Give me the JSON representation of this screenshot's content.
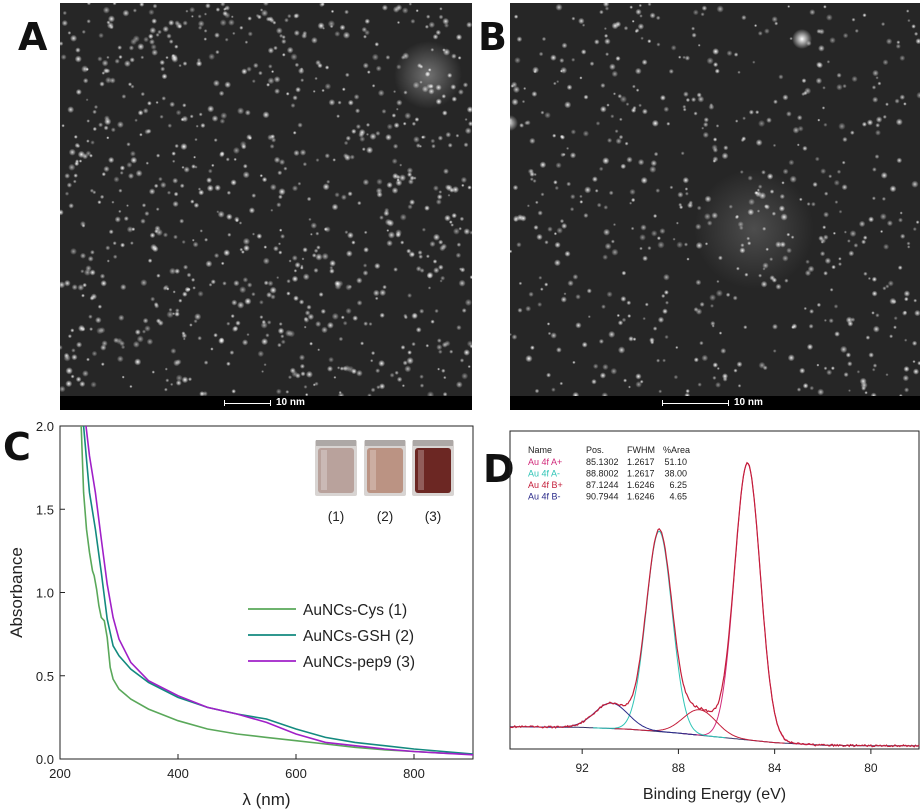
{
  "panels": {
    "a": {
      "letter": "A",
      "scale_label": "10 nm"
    },
    "b": {
      "letter": "B",
      "scale_label": "10 nm"
    },
    "c": {
      "letter": "C"
    },
    "d": {
      "letter": "D"
    }
  },
  "colors": {
    "cys": "#5aa85a",
    "gsh": "#138a7f",
    "pep9": "#a020c8",
    "xps_envelope": "#c41e3a",
    "xps_a_plus": "#d12a7a",
    "xps_a_minus": "#2ec4b6",
    "xps_b_plus": "#c41e3a",
    "xps_b_minus": "#2a2a8a",
    "xps_background": "#333366"
  },
  "chart_data": [
    {
      "type": "line",
      "panel": "C",
      "xlabel": "λ (nm)",
      "ylabel": "Absorbance",
      "xlim": [
        200,
        900
      ],
      "ylim": [
        0,
        2.0
      ],
      "xticks": [
        200,
        400,
        600,
        800
      ],
      "yticks": [
        0.0,
        0.5,
        1.0,
        1.5,
        2.0
      ],
      "xtick_labels": [
        "200",
        "400",
        "600",
        "800"
      ],
      "ytick_labels": [
        "0.0",
        "0.5",
        "1.0",
        "1.5",
        "2.0"
      ],
      "legend_position": "center-right",
      "series": [
        {
          "name": "AuNCs-Cys (1)",
          "color": "#5aa85a",
          "x": [
            236,
            240,
            245,
            250,
            255,
            258,
            262,
            266,
            270,
            275,
            280,
            285,
            290,
            300,
            320,
            350,
            400,
            450,
            500,
            550,
            600,
            650,
            700,
            750,
            800,
            850,
            900
          ],
          "y": [
            2.0,
            1.6,
            1.38,
            1.24,
            1.13,
            1.1,
            1.02,
            0.92,
            0.85,
            0.83,
            0.73,
            0.55,
            0.48,
            0.42,
            0.36,
            0.3,
            0.23,
            0.18,
            0.15,
            0.13,
            0.11,
            0.09,
            0.07,
            0.055,
            0.045,
            0.035,
            0.028
          ]
        },
        {
          "name": "AuNCs-GSH (2)",
          "color": "#138a7f",
          "x": [
            240,
            245,
            250,
            260,
            270,
            280,
            290,
            300,
            320,
            350,
            400,
            450,
            500,
            550,
            600,
            650,
            700,
            750,
            800,
            850,
            900
          ],
          "y": [
            2.0,
            1.8,
            1.6,
            1.38,
            1.12,
            0.84,
            0.68,
            0.62,
            0.54,
            0.46,
            0.37,
            0.31,
            0.27,
            0.24,
            0.18,
            0.13,
            0.1,
            0.08,
            0.06,
            0.045,
            0.03
          ]
        },
        {
          "name": "AuNCs-pep9 (3)",
          "color": "#a020c8",
          "x": [
            244,
            250,
            260,
            270,
            280,
            290,
            300,
            320,
            350,
            400,
            450,
            500,
            550,
            600,
            650,
            700,
            750,
            800,
            850,
            900
          ],
          "y": [
            2.0,
            1.82,
            1.6,
            1.32,
            1.05,
            0.85,
            0.72,
            0.58,
            0.47,
            0.38,
            0.31,
            0.27,
            0.22,
            0.15,
            0.1,
            0.08,
            0.06,
            0.045,
            0.035,
            0.025
          ]
        }
      ],
      "inset": {
        "vial_labels": [
          "(1)",
          "(2)",
          "(3)"
        ],
        "vial_colors": [
          "#b9a29c",
          "#bb9383",
          "#6c2723"
        ]
      }
    },
    {
      "type": "line",
      "panel": "D",
      "xlabel": "Binding Energy (eV)",
      "ylabel": "",
      "xlim": [
        95,
        78
      ],
      "ylim": [
        0,
        1.0
      ],
      "xticks": [
        92,
        88,
        84,
        80
      ],
      "xtick_labels": [
        "92",
        "88",
        "84",
        "80"
      ],
      "table": {
        "headers": [
          "Name",
          "Pos.",
          "FWHM",
          "%Area"
        ],
        "rows": [
          {
            "name": "Au 4f A+",
            "pos": "85.1302",
            "fwhm": "1.2617",
            "area": "51.10",
            "color": "#d12a7a"
          },
          {
            "name": "Au 4f A-",
            "pos": "88.8002",
            "fwhm": "1.2617",
            "area": "38.00",
            "color": "#2ec4b6"
          },
          {
            "name": "Au 4f B+",
            "pos": "87.1244",
            "fwhm": "1.6246",
            "area": "6.25",
            "color": "#c41e3a"
          },
          {
            "name": "Au 4f B-",
            "pos": "90.7944",
            "fwhm": "1.6246",
            "area": "4.65",
            "color": "#2a2a8a"
          }
        ]
      },
      "peaks": [
        {
          "name": "Au 4f A+",
          "center": 85.13,
          "height": 0.87,
          "fwhm": 1.26
        },
        {
          "name": "Au 4f A-",
          "center": 88.8,
          "height": 0.63,
          "fwhm": 1.26
        },
        {
          "name": "Au 4f B+",
          "center": 87.12,
          "height": 0.08,
          "fwhm": 1.62
        },
        {
          "name": "Au 4f B-",
          "center": 90.79,
          "height": 0.08,
          "fwhm": 1.62
        }
      ],
      "background": {
        "x": [
          95,
          92,
          90,
          88,
          86,
          84,
          82,
          80,
          78
        ],
        "y": [
          0.07,
          0.068,
          0.062,
          0.05,
          0.035,
          0.02,
          0.012,
          0.01,
          0.01
        ]
      }
    }
  ]
}
